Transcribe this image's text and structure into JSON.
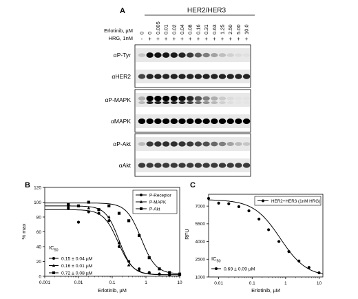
{
  "panel_a": {
    "label": "A",
    "title": "HER2/HER3",
    "erlotinib_label": "Erlotinib, µM",
    "hrg_label": "HRG, 1nM",
    "concentrations": [
      "0",
      "0",
      "0.005",
      "0.01",
      "0.02",
      "0.04",
      "0.08",
      "0.16",
      "0.31",
      "0.63",
      "1.25",
      "2.50",
      "5.00",
      "10.0"
    ],
    "hrg": [
      "-",
      "+",
      "+",
      "+",
      "+",
      "+",
      "+",
      "+",
      "+",
      "+",
      "+",
      "+",
      "+",
      "+"
    ],
    "groups": [
      {
        "blots": [
          {
            "label": "αP-Tyr",
            "intensities": [
              0.15,
              0.95,
              0.92,
              0.9,
              0.88,
              0.85,
              0.75,
              0.6,
              0.45,
              0.3,
              0.18,
              0.1,
              0.05,
              0.03
            ],
            "doublet": false
          },
          {
            "label": "αHER2",
            "intensities": [
              0.7,
              0.85,
              0.85,
              0.85,
              0.85,
              0.85,
              0.85,
              0.85,
              0.85,
              0.85,
              0.85,
              0.85,
              0.85,
              0.85
            ],
            "doublet": false
          }
        ]
      },
      {
        "blots": [
          {
            "label": "αP-MAPK",
            "intensities": [
              0.25,
              1.0,
              1.0,
              1.0,
              0.98,
              0.95,
              0.85,
              0.65,
              0.45,
              0.25,
              0.12,
              0.05,
              0.02,
              0.02
            ],
            "doublet": true
          },
          {
            "label": "αMAPK",
            "intensities": [
              1.0,
              1.0,
              1.0,
              1.0,
              1.0,
              1.0,
              1.0,
              1.0,
              1.0,
              1.0,
              1.0,
              1.0,
              1.0,
              1.0
            ],
            "doublet": false
          }
        ]
      },
      {
        "blots": [
          {
            "label": "αP-Akt",
            "intensities": [
              0.2,
              0.75,
              0.8,
              0.8,
              0.8,
              0.78,
              0.75,
              0.7,
              0.65,
              0.55,
              0.45,
              0.3,
              0.2,
              0.15
            ],
            "doublet": false
          },
          {
            "label": "αAkt",
            "intensities": [
              0.75,
              0.75,
              0.75,
              0.75,
              0.75,
              0.75,
              0.75,
              0.75,
              0.75,
              0.75,
              0.75,
              0.75,
              0.75,
              0.75
            ],
            "doublet": false
          }
        ]
      }
    ]
  },
  "panel_b": {
    "label": "B",
    "ic50_label": "IC",
    "ic50_sub": "50"
  },
  "panel_c": {
    "label": "C",
    "ic50_label": "IC",
    "ic50_sub": "50"
  },
  "chart_data": [
    {
      "type": "scatter",
      "xlabel": "Erlotinib, µM",
      "ylabel": "% max",
      "xscale": "log",
      "xlim": [
        0.001,
        10
      ],
      "ylim": [
        0,
        120
      ],
      "x_ticks": [
        "0.001",
        "0.01",
        "0.1",
        "1",
        "10"
      ],
      "y_ticks": [
        "0",
        "20",
        "40",
        "60",
        "80",
        "100",
        "120"
      ],
      "legend_position": "top-right",
      "series": [
        {
          "name": "P-Receptor",
          "marker": "circle",
          "x": [
            0.005,
            0.01,
            0.02,
            0.04,
            0.08,
            0.16,
            0.31,
            0.63,
            1.25,
            2.5,
            5,
            10
          ],
          "y": [
            92,
            73,
            87,
            85,
            75,
            40,
            20,
            10,
            5,
            3,
            2,
            2
          ],
          "ic50": "0.15 ± 0.04 µM"
        },
        {
          "name": "P-MAPK",
          "marker": "triangle",
          "x": [
            0.005,
            0.01,
            0.02,
            0.04,
            0.08,
            0.16,
            0.31,
            0.63,
            1.25,
            2.5,
            5,
            10
          ],
          "y": [
            95,
            95,
            92,
            90,
            80,
            45,
            15,
            8,
            5,
            3,
            2,
            2
          ],
          "ic50": "0.16 ± 0.01 µM"
        },
        {
          "name": "P-Akt",
          "marker": "square",
          "x": [
            0.005,
            0.01,
            0.02,
            0.04,
            0.08,
            0.16,
            0.31,
            0.63,
            1.25,
            2.5,
            5,
            10
          ],
          "y": [
            97,
            95,
            100,
            90,
            95,
            85,
            75,
            55,
            25,
            10,
            5,
            3
          ],
          "ic50": "0.72 ± 0.08 µM"
        }
      ]
    },
    {
      "type": "scatter",
      "xlabel": "Erlotinib, µM",
      "ylabel": "RFU",
      "xscale": "log",
      "xlim": [
        0.005,
        13
      ],
      "ylim": [
        1000,
        8000
      ],
      "x_ticks": [
        "0.01",
        "0.1",
        "1",
        "10"
      ],
      "y_ticks": [
        "1000",
        "2500",
        "4000",
        "5500",
        "7000"
      ],
      "legend_position": "top-right",
      "series": [
        {
          "name": "HER2+HER3 (1nM HRG)",
          "marker": "circle",
          "x": [
            0.005,
            0.01,
            0.02,
            0.04,
            0.08,
            0.16,
            0.31,
            0.63,
            1.25,
            2.5,
            5,
            10
          ],
          "y": [
            7650,
            7250,
            7200,
            6950,
            6600,
            5900,
            5000,
            4000,
            3150,
            2350,
            1800,
            1350
          ],
          "ic50": "0.69 ± 0.09 µM"
        }
      ]
    }
  ]
}
